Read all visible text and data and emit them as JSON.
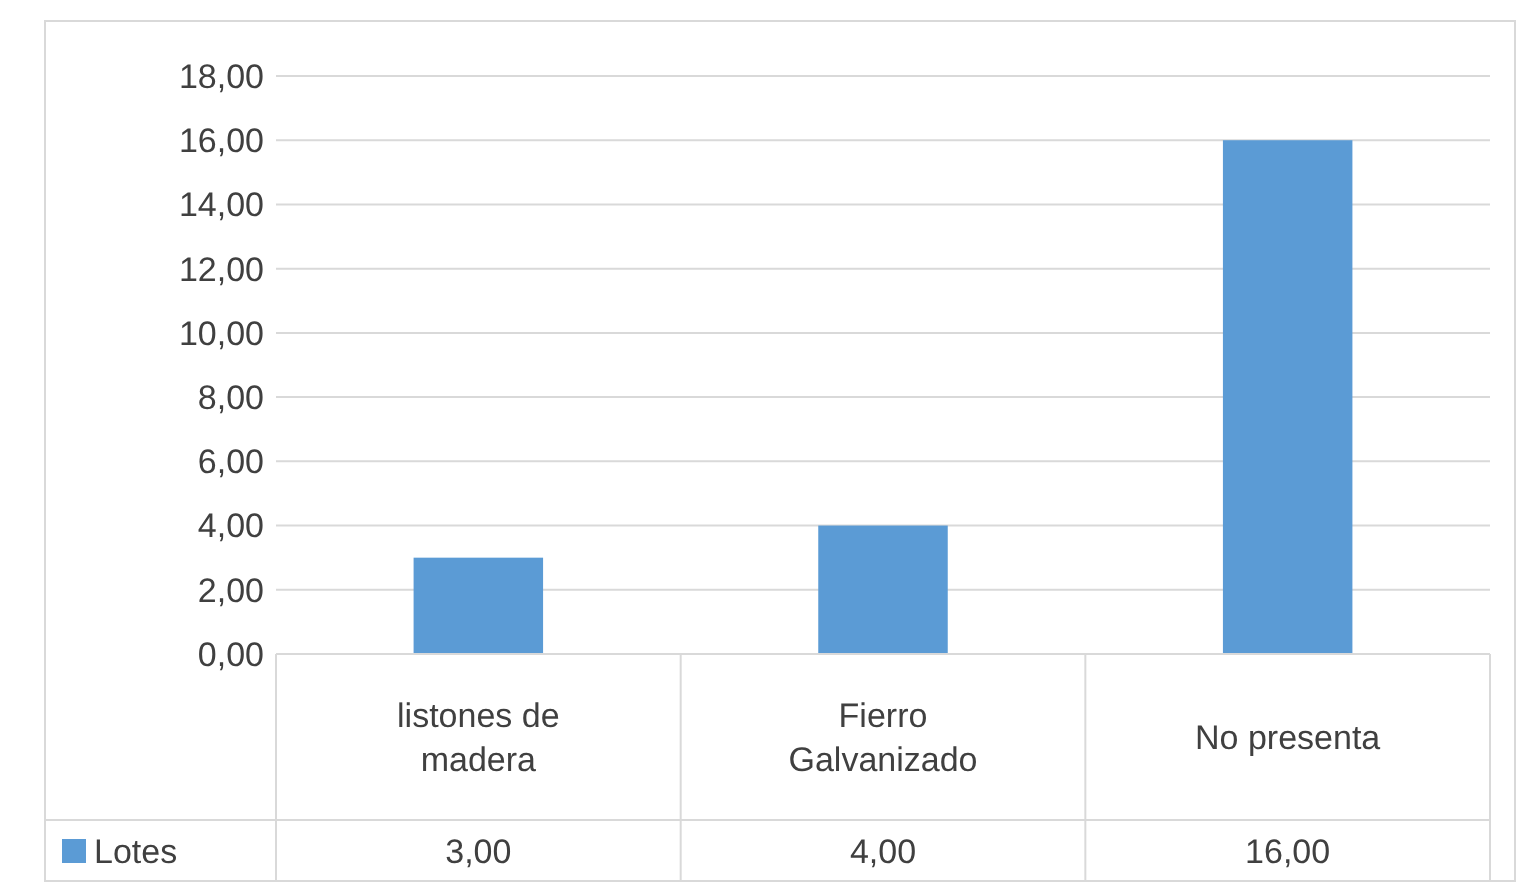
{
  "chart_data": {
    "type": "bar",
    "categories": [
      "listones de madera",
      "Fierro Galvanizado",
      "No presenta"
    ],
    "series": [
      {
        "name": "Lotes",
        "color": "#5b9bd5",
        "values": [
          3,
          4,
          16
        ]
      }
    ],
    "ylim": [
      0,
      18
    ],
    "yticks": [
      {
        "value": 0,
        "label": "0,00"
      },
      {
        "value": 2,
        "label": "2,00"
      },
      {
        "value": 4,
        "label": "4,00"
      },
      {
        "value": 6,
        "label": "6,00"
      },
      {
        "value": 8,
        "label": "8,00"
      },
      {
        "value": 10,
        "label": "10,00"
      },
      {
        "value": 12,
        "label": "12,00"
      },
      {
        "value": 14,
        "label": "14,00"
      },
      {
        "value": 16,
        "label": "16,00"
      },
      {
        "value": 18,
        "label": "18,00"
      }
    ],
    "value_labels": [
      [
        "3,00",
        "4,00",
        "16,00"
      ]
    ],
    "grid": "y",
    "legend": "bottom left"
  }
}
